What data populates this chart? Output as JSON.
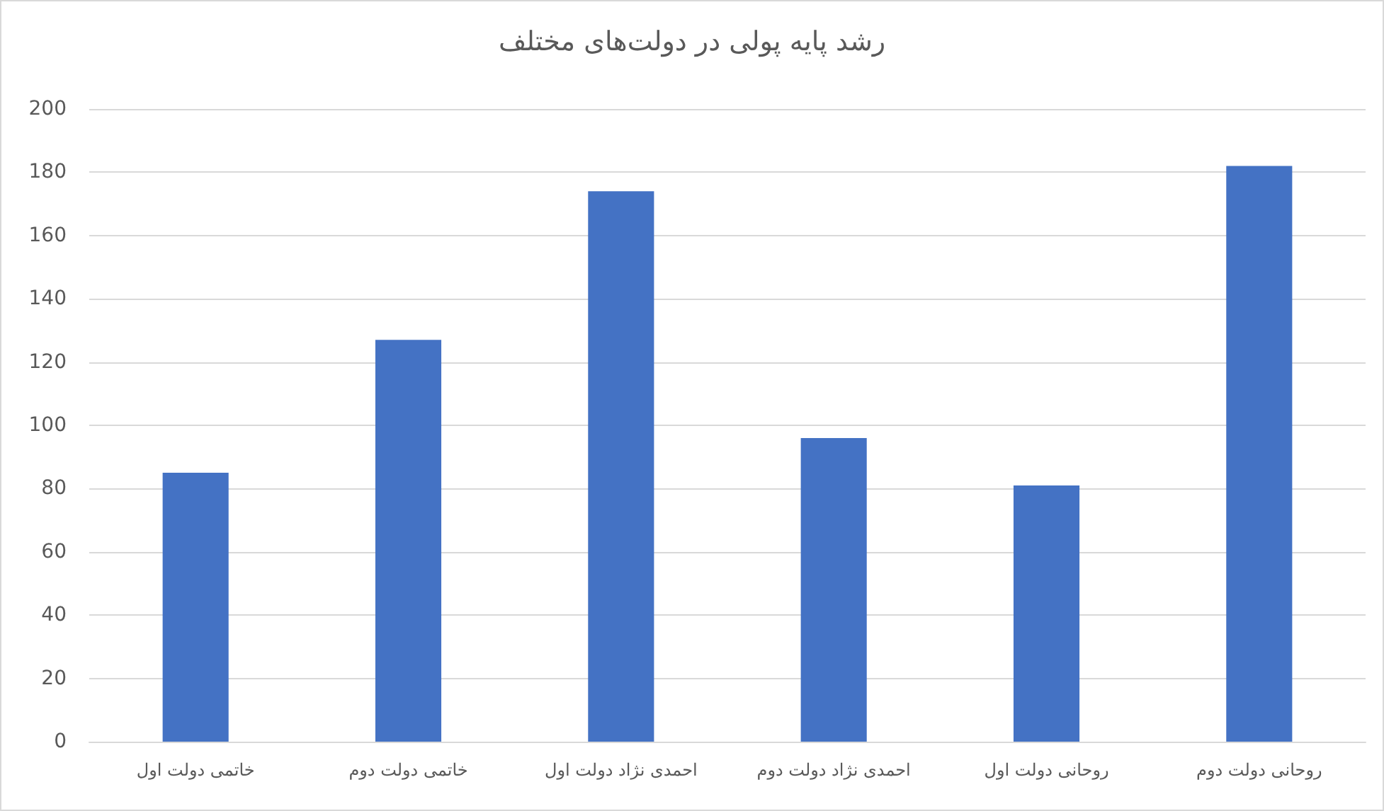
{
  "chart_data": {
    "type": "bar",
    "title": "رشد پایه پولی در دولت‌های مختلف",
    "categories": [
      "خاتمی دولت اول",
      "خاتمی دولت دوم",
      "احمدی نژاد دولت اول",
      "احمدی نژاد دولت دوم",
      "روحانی دولت اول",
      "روحانی دولت دوم"
    ],
    "values": [
      85,
      127,
      174,
      96,
      81,
      182
    ],
    "color": "#4472c4",
    "ylim": [
      0,
      200
    ],
    "yticks": [
      0,
      20,
      40,
      60,
      80,
      100,
      120,
      140,
      160,
      180,
      200
    ],
    "grid": "y"
  }
}
